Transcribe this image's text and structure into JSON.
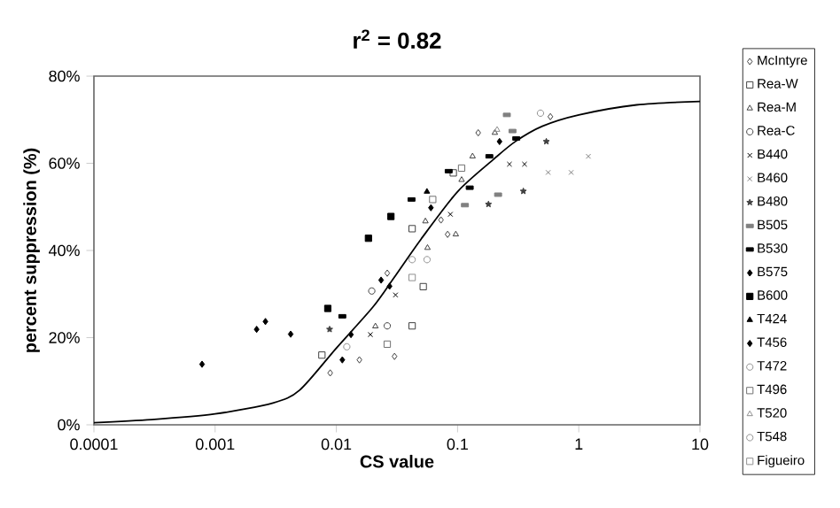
{
  "chart_data": {
    "type": "scatter",
    "title": "r$^{2}$ = 0.82",
    "xlabel": "CS value",
    "ylabel": "percent suppression (%)",
    "log": "x",
    "xlim": [
      0.0001,
      10
    ],
    "xticks": [
      0.0001,
      0.001,
      0.01,
      0.1,
      1,
      10
    ],
    "ylim": [
      0,
      80
    ],
    "yticks": [
      {
        "value": 0,
        "label": "0%"
      },
      {
        "value": 20,
        "label": "20%"
      },
      {
        "value": 40,
        "label": "40%"
      },
      {
        "value": 60,
        "label": "60%"
      },
      {
        "value": 80,
        "label": "80%"
      }
    ],
    "grid": false,
    "legend": "right",
    "series": [
      {
        "name": "McIntyre",
        "color": "#404040",
        "marker": "diamond",
        "x": [
          0.0089,
          0.0155,
          0.0302,
          0.0263,
          0.073,
          0.0828,
          0.148,
          0.583
        ],
        "values": [
          11.9,
          14.9,
          15.7,
          34.8,
          47.0,
          43.7,
          67.0,
          70.7
        ]
      },
      {
        "name": "Rea-W",
        "color": "#404040",
        "marker": "square",
        "x": [
          0.0076,
          0.0422,
          0.0422,
          0.0521,
          0.0922
        ],
        "values": [
          16.0,
          45.0,
          22.7,
          31.7,
          57.8
        ]
      },
      {
        "name": "Rea-M",
        "color": "#404040",
        "marker": "triangle",
        "x": [
          0.021,
          0.0565,
          0.0543,
          0.0967,
          0.108,
          0.133,
          0.203
        ],
        "values": [
          22.6,
          40.6,
          46.7,
          43.7,
          56.2,
          61.6,
          67.0
        ]
      },
      {
        "name": "Rea-C",
        "color": "#404040",
        "marker": "circle",
        "x": [
          0.0196,
          0.0263
        ],
        "values": [
          30.7,
          22.7
        ]
      },
      {
        "name": "B440",
        "color": "#000000",
        "marker": "cross",
        "x": [
          0.0191,
          0.0308,
          0.0873,
          0.268,
          0.357
        ],
        "values": [
          20.7,
          29.8,
          48.3,
          59.8,
          59.8
        ]
      },
      {
        "name": "B460",
        "color": "#808080",
        "marker": "cross",
        "x": [
          0.559,
          0.865,
          1.2
        ],
        "values": [
          57.9,
          57.9,
          61.6
        ]
      },
      {
        "name": "B480",
        "color": "#404040",
        "marker": "star",
        "x": [
          0.0088,
          0.18,
          0.349,
          0.54
        ],
        "values": [
          21.9,
          50.6,
          53.6,
          65.0
        ]
      },
      {
        "name": "B505",
        "color": "#808080",
        "x": [
          0.115,
          0.255,
          0.284,
          0.216
        ],
        "values": [
          50.4,
          71.1,
          67.4,
          52.8
        ]
      },
      {
        "name": "B530",
        "color": "#000000",
        "x": [
          0.0112,
          0.0417,
          0.0845,
          0.126,
          0.183,
          0.305
        ],
        "values": [
          24.9,
          51.7,
          58.2,
          54.4,
          61.6,
          65.7
        ]
      },
      {
        "name": "B575",
        "color": "#000000",
        "marker": "diamond",
        "x": [
          0.00078,
          0.0022,
          0.0026,
          0.0042
        ],
        "values": [
          13.9,
          21.9,
          23.7,
          20.8
        ]
      },
      {
        "name": "B600",
        "color": "#000000",
        "marker": "square",
        "x": [
          0.0085,
          0.0184,
          0.0282
        ],
        "values": [
          26.7,
          42.8,
          47.8
        ]
      },
      {
        "name": "T424",
        "color": "#000000",
        "marker": "triangle",
        "x": [
          0.0559
        ],
        "values": [
          53.5
        ]
      },
      {
        "name": "T456",
        "color": "#000000",
        "marker": "diamond",
        "x": [
          0.0132,
          0.0112,
          0.0234,
          0.0275,
          0.0603,
          0.222
        ],
        "values": [
          20.7,
          14.9,
          33.2,
          31.8,
          49.8,
          65.0
        ]
      },
      {
        "name": "T472",
        "color": "#909090",
        "marker": "circle",
        "x": [
          0.0122,
          0.0422
        ],
        "values": [
          17.9,
          37.9
        ]
      },
      {
        "name": "T496",
        "color": "#707070",
        "marker": "square",
        "x": [
          0.0263,
          0.0624,
          0.108
        ],
        "values": [
          18.5,
          51.7,
          58.9
        ]
      },
      {
        "name": "T520",
        "color": "#909090",
        "marker": "triangle",
        "x": [
          0.212
        ],
        "values": [
          67.7
        ]
      },
      {
        "name": "T548",
        "color": "#909090",
        "marker": "circle",
        "x": [
          0.056,
          0.483
        ],
        "values": [
          37.9,
          71.5
        ]
      },
      {
        "name": "Figueiro",
        "color": "#909090",
        "marker": "square",
        "x": [
          0.0422
        ],
        "values": [
          33.8
        ]
      },
      {
        "type": "line",
        "color": "#000000",
        "x": [
          0.0001,
          0.0003,
          0.001,
          0.003,
          0.005,
          0.01,
          0.02,
          0.03,
          0.05,
          0.1,
          0.2,
          0.3,
          0.5,
          1,
          3,
          10
        ],
        "values": [
          0.5,
          1.2,
          2.5,
          5,
          8,
          17.6,
          27,
          33.8,
          42.6,
          53.5,
          61,
          65,
          68.5,
          71.1,
          73.4,
          74.2
        ]
      }
    ]
  }
}
